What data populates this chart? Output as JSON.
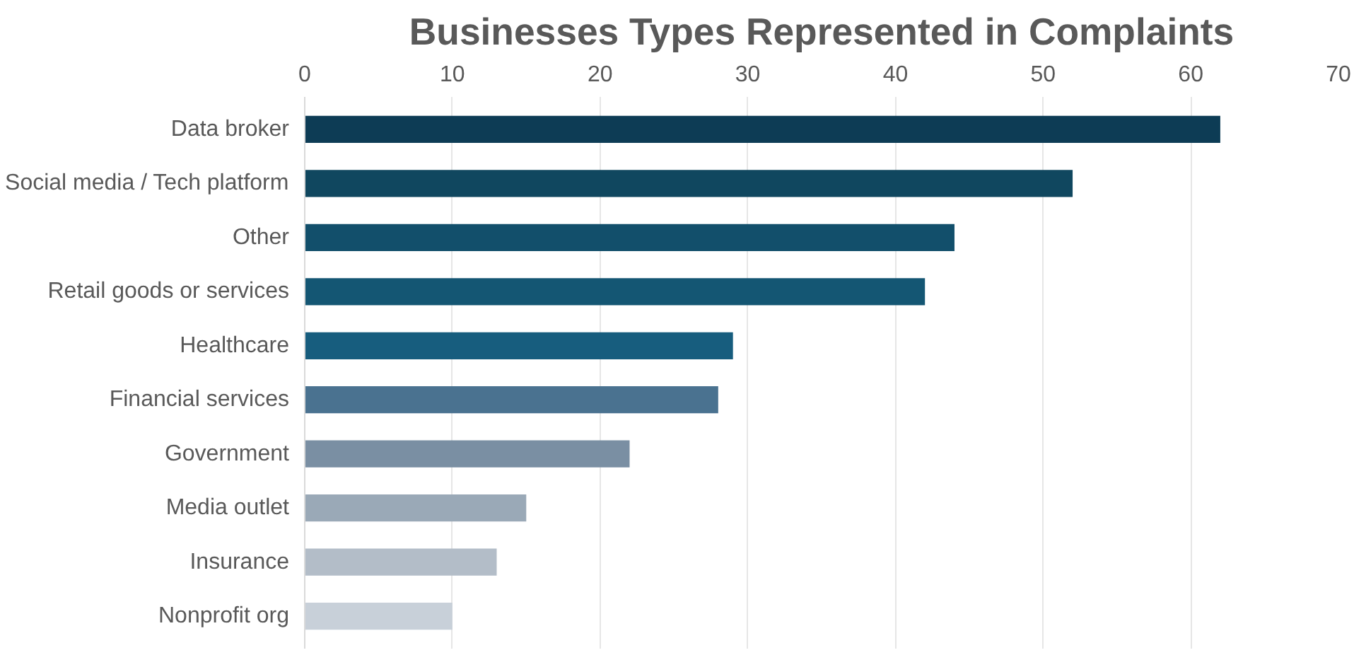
{
  "chart_data": {
    "type": "bar",
    "orientation": "horizontal",
    "title": "Businesses Types Represented in Complaints",
    "categories": [
      "Data broker",
      "Social media / Tech platform",
      "Other",
      "Retail goods or services",
      "Healthcare",
      "Financial services",
      "Government",
      "Media outlet",
      "Insurance",
      "Nonprofit org"
    ],
    "values": [
      62,
      52,
      44,
      42,
      29,
      28,
      22,
      15,
      13,
      10
    ],
    "colors": [
      "#0d3c55",
      "#10475f",
      "#124f6b",
      "#145673",
      "#175d7e",
      "#4a7290",
      "#7a8fa3",
      "#9aa9b7",
      "#b3bdc8",
      "#c8d0d9"
    ],
    "xlim": [
      0,
      70
    ],
    "xticks": [
      0,
      10,
      20,
      30,
      40,
      50,
      60,
      70
    ],
    "grid": "x"
  }
}
